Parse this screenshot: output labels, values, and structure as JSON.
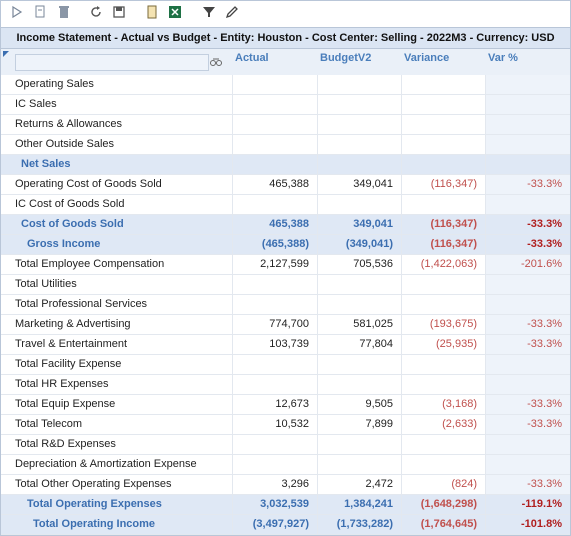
{
  "title": "Income Statement - Actual vs Budget - Entity: Houston - Cost Center: Selling - 2022M3 - Currency: USD",
  "columns": [
    "Actual",
    "BudgetV2",
    "Variance",
    "Var %"
  ],
  "rows": [
    {
      "label": "Operating Sales",
      "values": [
        null,
        null,
        null,
        null
      ]
    },
    {
      "label": "IC Sales",
      "values": [
        null,
        null,
        null,
        null
      ]
    },
    {
      "label": "Returns & Allowances",
      "values": [
        null,
        null,
        null,
        null
      ]
    },
    {
      "label": "Other Outside Sales",
      "values": [
        null,
        null,
        null,
        null
      ]
    },
    {
      "label": "Net Sales",
      "values": [
        null,
        null,
        null,
        null
      ]
    },
    {
      "label": "Operating Cost of Goods Sold",
      "values": [
        "465,388",
        "349,041",
        "(116,347)",
        "-33.3%"
      ]
    },
    {
      "label": "IC Cost of Goods Sold",
      "values": [
        null,
        null,
        null,
        null
      ]
    },
    {
      "label": "Cost of Goods Sold",
      "values": [
        "465,388",
        "349,041",
        "(116,347)",
        "-33.3%"
      ]
    },
    {
      "label": "Gross Income",
      "values": [
        "(465,388)",
        "(349,041)",
        "(116,347)",
        "-33.3%"
      ]
    },
    {
      "label": "Total Employee Compensation",
      "values": [
        "2,127,599",
        "705,536",
        "(1,422,063)",
        "-201.6%"
      ]
    },
    {
      "label": "Total Utilities",
      "values": [
        null,
        null,
        null,
        null
      ]
    },
    {
      "label": "Total Professional Services",
      "values": [
        null,
        null,
        null,
        null
      ]
    },
    {
      "label": "Marketing & Advertising",
      "values": [
        "774,700",
        "581,025",
        "(193,675)",
        "-33.3%"
      ]
    },
    {
      "label": "Travel & Entertainment",
      "values": [
        "103,739",
        "77,804",
        "(25,935)",
        "-33.3%"
      ]
    },
    {
      "label": "Total Facility Expense",
      "values": [
        null,
        null,
        null,
        null
      ]
    },
    {
      "label": "Total HR Expenses",
      "values": [
        null,
        null,
        null,
        null
      ]
    },
    {
      "label": "Total Equip Expense",
      "values": [
        "12,673",
        "9,505",
        "(3,168)",
        "-33.3%"
      ]
    },
    {
      "label": "Total Telecom",
      "values": [
        "10,532",
        "7,899",
        "(2,633)",
        "-33.3%"
      ]
    },
    {
      "label": "Total R&D Expenses",
      "values": [
        null,
        null,
        null,
        null
      ]
    },
    {
      "label": "Depreciation & Amortization Expense",
      "values": [
        null,
        null,
        null,
        null
      ]
    },
    {
      "label": "Total Other Operating Expenses",
      "values": [
        "3,296",
        "2,472",
        "(824)",
        "-33.3%"
      ]
    },
    {
      "label": "Total Operating Expenses",
      "values": [
        "3,032,539",
        "1,384,241",
        "(1,648,298)",
        "-119.1%"
      ]
    },
    {
      "label": "Total Operating Income",
      "values": [
        "(3,497,927)",
        "(1,733,282)",
        "(1,764,645)",
        "-101.8%"
      ]
    }
  ]
}
